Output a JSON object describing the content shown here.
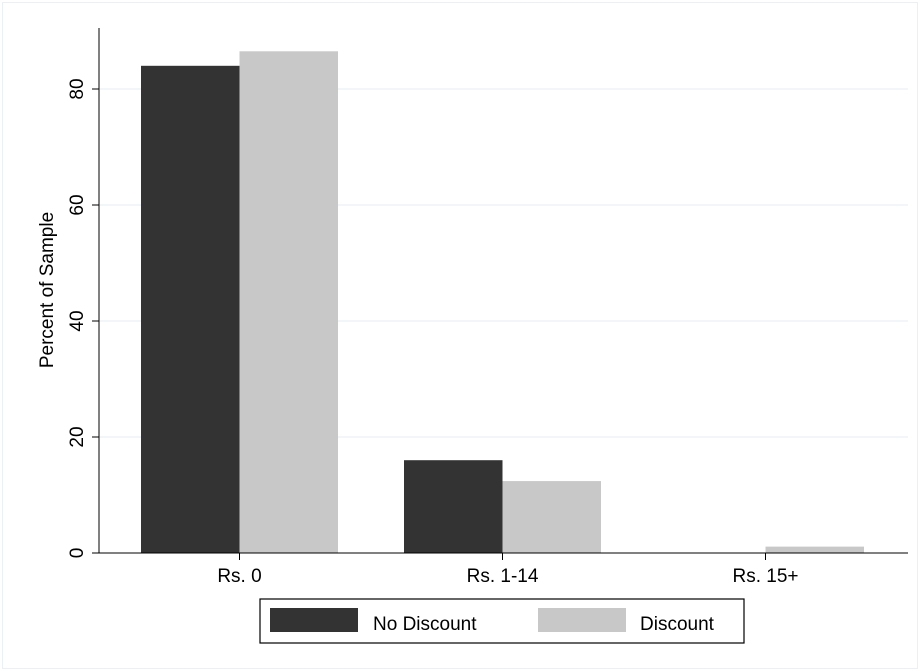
{
  "chart_data": {
    "type": "bar",
    "title": "",
    "xlabel": "",
    "ylabel": "Percent of Sample",
    "categories": [
      "Rs. 0",
      "Rs. 1-14",
      "Rs. 15+"
    ],
    "series": [
      {
        "name": "No Discount",
        "values": [
          84.0,
          16.0,
          0.0
        ],
        "color": "#333333"
      },
      {
        "name": "Discount",
        "values": [
          86.5,
          12.4,
          1.1
        ],
        "color": "#c8c8c8"
      }
    ],
    "ylim": [
      0,
      90
    ],
    "yticks": [
      0,
      20,
      40,
      60,
      80
    ],
    "grid": true,
    "legend_position": "bottom"
  }
}
